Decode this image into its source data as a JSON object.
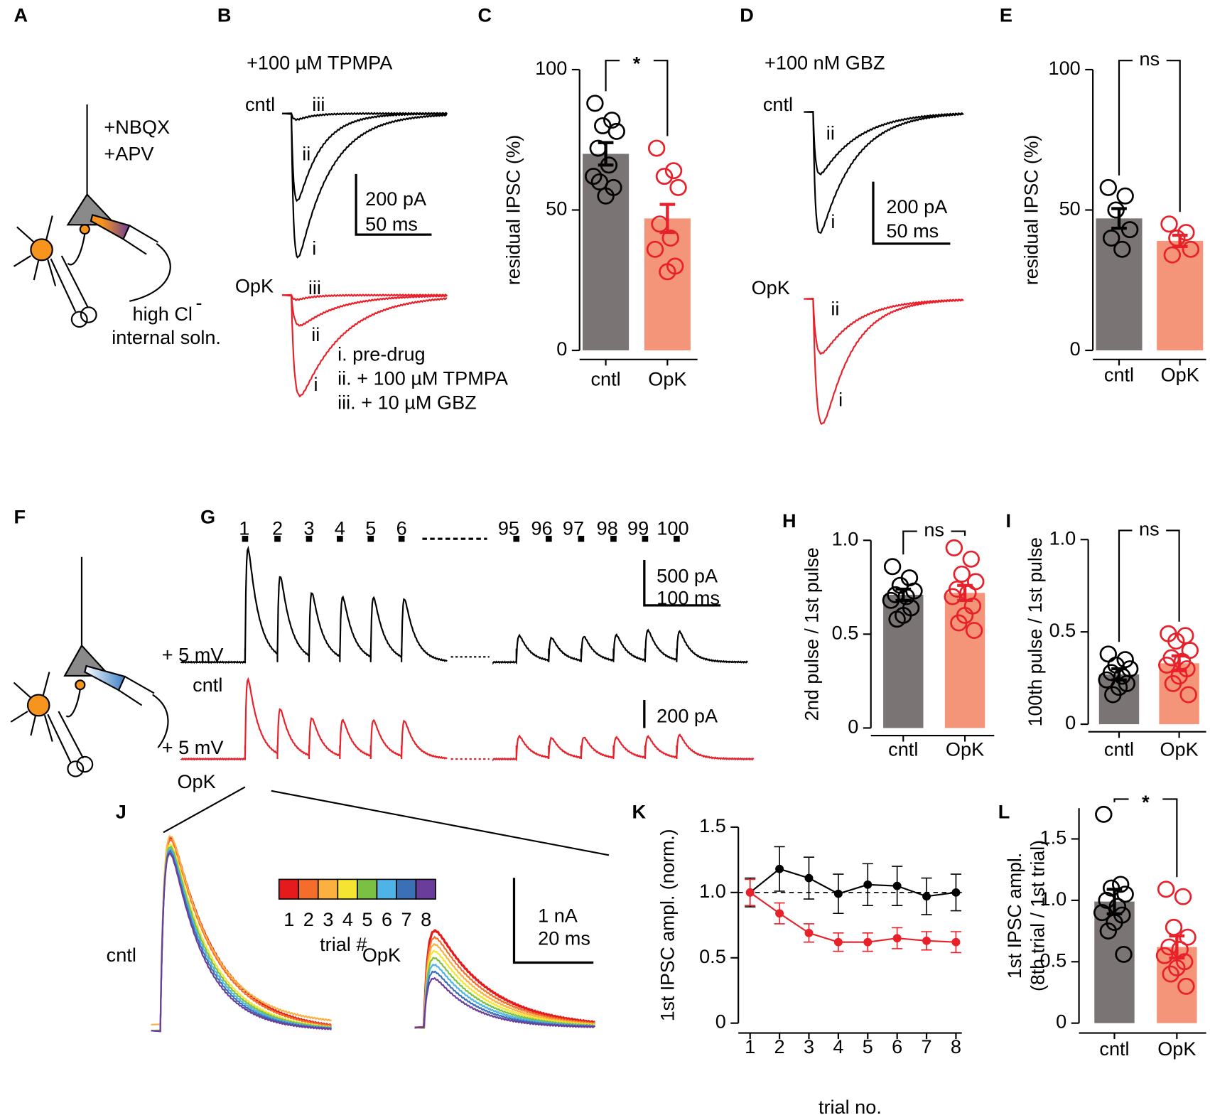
{
  "panels": [
    "A",
    "B",
    "C",
    "D",
    "E",
    "F",
    "G",
    "H",
    "I",
    "J",
    "K",
    "L"
  ],
  "annotations": [
    "+NBQX",
    "+APV",
    "high Cl",
    "-",
    "internal soln.",
    "+100 µM TPMPA",
    "cntl",
    "iii",
    "ii",
    "i",
    "200 pA",
    "50 ms",
    "OpK",
    "iii",
    "ii",
    "i",
    "i. pre-drug",
    "ii. + 100 µM TPMPA",
    "iii. + 10 µM GBZ",
    "+100 nM GBZ",
    "cntl",
    "ii",
    "i",
    "200 pA",
    "50 ms",
    "OpK",
    "ii",
    "i",
    "1",
    "2",
    "3",
    "4",
    "5",
    "6",
    "95",
    "96",
    "97",
    "98",
    "99",
    "100",
    "500 pA",
    "100 ms",
    "+ 5 mV",
    "cntl",
    "200 pA",
    "+ 5 mV",
    "OpK",
    "1 nA",
    "20 ms",
    "cntl",
    "OpK",
    "1",
    "2",
    "3",
    "4",
    "5",
    "6",
    "7",
    "8",
    "trial #"
  ],
  "chart_data": [
    {
      "type": "bar",
      "categories": [
        "cntl",
        "OpK"
      ],
      "values": [
        70,
        47
      ],
      "errors": [
        4,
        5
      ],
      "points": [
        [
          88,
          82,
          80,
          78,
          72,
          66,
          62,
          58,
          55,
          60
        ],
        [
          72,
          64,
          62,
          58,
          45,
          40,
          36,
          30,
          28
        ]
      ],
      "colors": [
        "#7a7474",
        "#f4957a"
      ],
      "marker_colors": [
        "#000000",
        "#e8202a"
      ],
      "ylabel": "residual  IPSC (%)",
      "ylim": [
        0,
        100
      ],
      "yticks": [
        0,
        50,
        100
      ],
      "significance": "*"
    },
    {
      "type": "bar",
      "categories": [
        "cntl",
        "OpK"
      ],
      "values": [
        47,
        39
      ],
      "errors": [
        3.5,
        2
      ],
      "points": [
        [
          58,
          55,
          50,
          43,
          40,
          36
        ],
        [
          45,
          42,
          40,
          36,
          34
        ]
      ],
      "colors": [
        "#7a7474",
        "#f4957a"
      ],
      "marker_colors": [
        "#000000",
        "#e8202a"
      ],
      "ylabel": "residual IPSC (%)",
      "ylim": [
        0,
        100
      ],
      "yticks": [
        0,
        50,
        100
      ],
      "significance": "ns"
    },
    {
      "type": "bar",
      "categories": [
        "cntl",
        "OpK"
      ],
      "values": [
        0.71,
        0.72
      ],
      "errors": [
        0.03,
        0.04
      ],
      "points": [
        [
          0.86,
          0.8,
          0.76,
          0.73,
          0.71,
          0.7,
          0.68,
          0.64,
          0.6,
          0.58
        ],
        [
          0.96,
          0.9,
          0.82,
          0.78,
          0.74,
          0.72,
          0.7,
          0.65,
          0.6,
          0.56,
          0.52
        ]
      ],
      "colors": [
        "#7a7474",
        "#f4957a"
      ],
      "marker_colors": [
        "#000000",
        "#e8202a"
      ],
      "ylabel": "2nd pulse / 1st pulse",
      "ylim": [
        0,
        1
      ],
      "yticks": [
        0,
        0.5,
        {
          "value": 1,
          "label": "1.0"
        }
      ],
      "significance": "ns"
    },
    {
      "type": "bar",
      "categories": [
        "cntl",
        "OpK"
      ],
      "values": [
        0.27,
        0.33
      ],
      "errors": [
        0.03,
        0.04
      ],
      "points": [
        [
          0.38,
          0.35,
          0.32,
          0.3,
          0.28,
          0.26,
          0.24,
          0.22,
          0.2,
          0.16
        ],
        [
          0.49,
          0.48,
          0.45,
          0.4,
          0.36,
          0.34,
          0.32,
          0.3,
          0.26,
          0.22,
          0.16
        ]
      ],
      "colors": [
        "#7a7474",
        "#f4957a"
      ],
      "marker_colors": [
        "#000000",
        "#e8202a"
      ],
      "ylabel": "100th pulse / 1st pulse",
      "ylim": [
        0,
        1
      ],
      "yticks": [
        0,
        0.5,
        {
          "value": 1,
          "label": "1.0"
        }
      ],
      "significance": "ns"
    },
    {
      "type": "line",
      "x": [
        1,
        2,
        3,
        4,
        5,
        6,
        7,
        8
      ],
      "xlim": [
        0.6,
        8.2
      ],
      "xticks": [
        1,
        2,
        3,
        4,
        5,
        6,
        7,
        8
      ],
      "ylim": [
        0,
        1.5
      ],
      "yticks": [
        0,
        0.5,
        {
          "value": 1,
          "label": "1.0"
        },
        1.5
      ],
      "xlabel": "trial no.",
      "ylabel": "1st IPSC ampl. (norm.)",
      "reference_line": 1,
      "series": [
        {
          "color": "#000000",
          "values": [
            1.0,
            1.18,
            1.11,
            0.99,
            1.06,
            1.05,
            0.97,
            1.0
          ],
          "errors": [
            0.11,
            0.17,
            0.16,
            0.15,
            0.16,
            0.15,
            0.14,
            0.14
          ]
        },
        {
          "color": "#e8202a",
          "values": [
            1.0,
            0.84,
            0.69,
            0.62,
            0.62,
            0.65,
            0.63,
            0.62
          ],
          "errors": [
            0.1,
            0.08,
            0.07,
            0.07,
            0.07,
            0.08,
            0.07,
            0.08
          ]
        }
      ]
    },
    {
      "type": "bar",
      "categories": [
        "cntl",
        "OpK"
      ],
      "values": [
        0.99,
        0.62
      ],
      "errors": [
        0.1,
        0.09
      ],
      "points": [
        [
          1.7,
          1.13,
          1.1,
          1.05,
          1.0,
          0.95,
          0.9,
          0.88,
          0.82,
          0.75,
          0.56
        ],
        [
          1.09,
          1.03,
          0.78,
          0.7,
          0.62,
          0.6,
          0.55,
          0.5,
          0.45,
          0.4,
          0.3
        ]
      ],
      "colors": [
        "#7a7474",
        "#f4957a"
      ],
      "marker_colors": [
        "#000000",
        "#e8202a"
      ],
      "ylabel": [
        "1st IPSC ampl.",
        "(8th trial / 1st trial)"
      ],
      "ylim": [
        0,
        1.75
      ],
      "yticks": [
        0,
        0.5,
        {
          "value": 1,
          "label": "1.0"
        },
        1.5
      ],
      "significance": "*"
    }
  ]
}
